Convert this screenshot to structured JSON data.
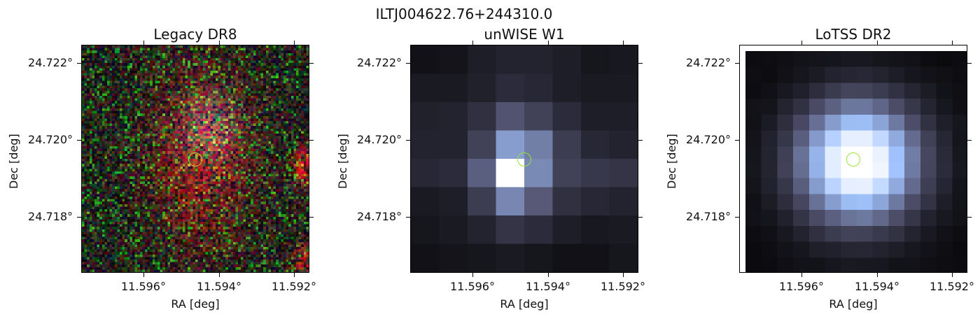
{
  "suptitle": "ILTJ004622.76+244310.0",
  "chart_data": [
    {
      "type": "heatmap",
      "title": "Legacy DR8",
      "xlabel": "RA [deg]",
      "ylabel": "Dec [deg]",
      "xticks": [
        "11.596°",
        "11.594°",
        "11.592°"
      ],
      "yticks": [
        "24.722°",
        "24.720°",
        "24.718°"
      ],
      "colormap": "rgb",
      "source_ra": 11.5948,
      "source_dec": 24.7195
    },
    {
      "type": "heatmap",
      "title": "unWISE W1",
      "xlabel": "RA [deg]",
      "ylabel": "Dec [deg]",
      "xticks": [
        "11.596°",
        "11.594°",
        "11.592°"
      ],
      "yticks": [
        "24.722°",
        "24.720°",
        "24.718°"
      ],
      "colormap": "bone",
      "source_ra": 11.5948,
      "source_dec": 24.7195
    },
    {
      "type": "heatmap",
      "title": "LoTSS DR2",
      "xlabel": "RA [deg]",
      "ylabel": "Dec [deg]",
      "xticks": [
        "11.596°",
        "11.594°",
        "11.592°"
      ],
      "yticks": [
        "24.722°",
        "24.720°",
        "24.718°"
      ],
      "colormap": "bone",
      "source_ra": 11.5948,
      "source_dec": 24.7195
    }
  ],
  "colors": {
    "marker": "#9be33a"
  }
}
